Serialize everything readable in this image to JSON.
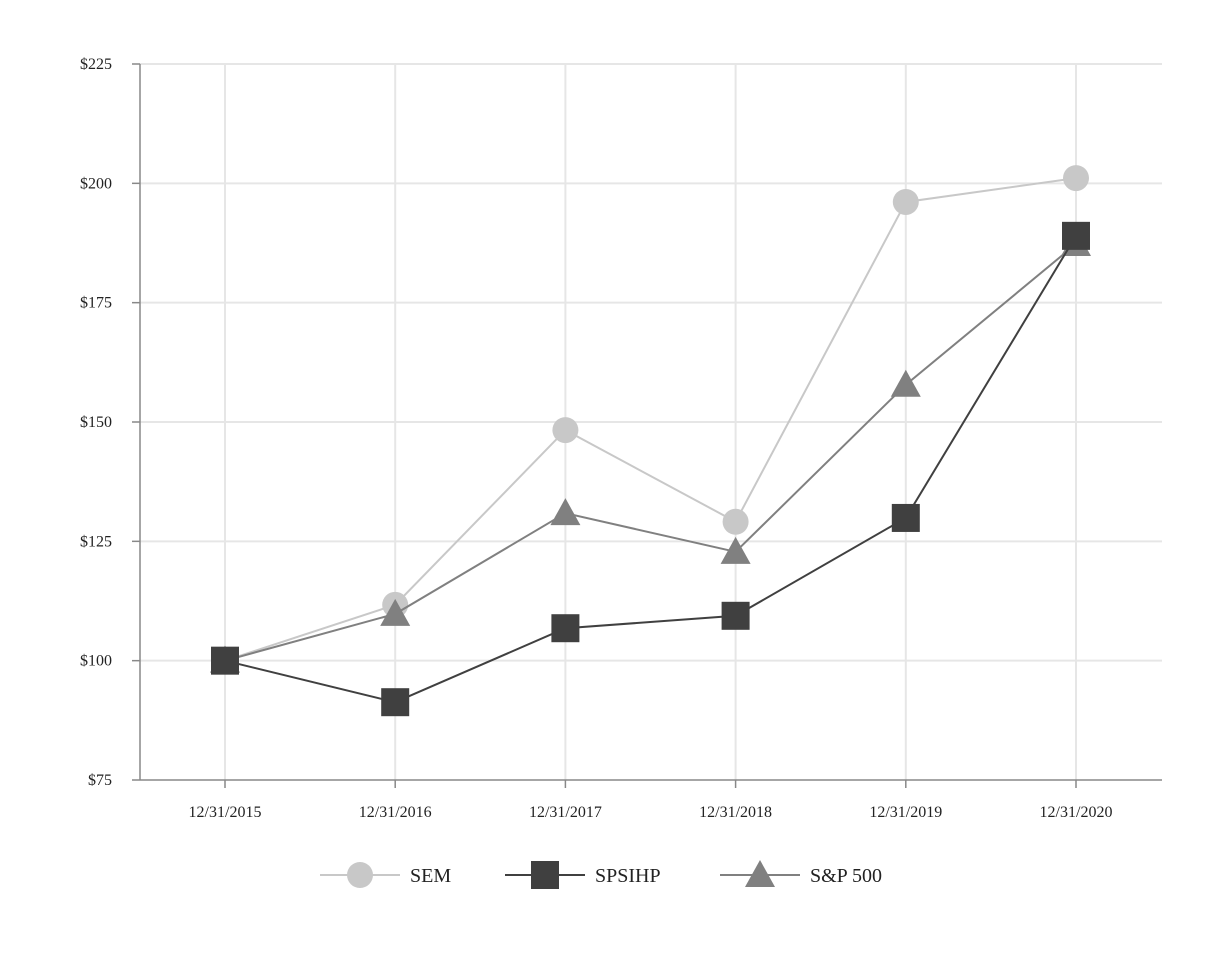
{
  "chart_data": {
    "type": "line",
    "title": "",
    "xlabel": "",
    "ylabel": "",
    "categories": [
      "12/31/2015",
      "12/31/2016",
      "12/31/2017",
      "12/31/2018",
      "12/31/2019",
      "12/31/2020"
    ],
    "ylim": [
      75,
      225
    ],
    "yticks": [
      75,
      100,
      125,
      150,
      175,
      200,
      225
    ],
    "ytick_labels": [
      "$75",
      "$100",
      "$125",
      "$150",
      "$175",
      "$200",
      "$225"
    ],
    "grid": true,
    "legend_position": "bottom",
    "series": [
      {
        "name": "SEM",
        "marker": "circle",
        "color": "#c8c8c8",
        "values": [
          100,
          111.7,
          148.3,
          129.1,
          196.1,
          201.1
        ]
      },
      {
        "name": "SPSIHP",
        "marker": "square",
        "color": "#404040",
        "values": [
          100,
          91.3,
          106.8,
          109.4,
          129.9,
          189.0
        ]
      },
      {
        "name": "S&P 500",
        "marker": "triangle",
        "color": "#808080",
        "values": [
          100,
          109.8,
          130.9,
          122.8,
          157.8,
          187.3
        ]
      }
    ]
  }
}
